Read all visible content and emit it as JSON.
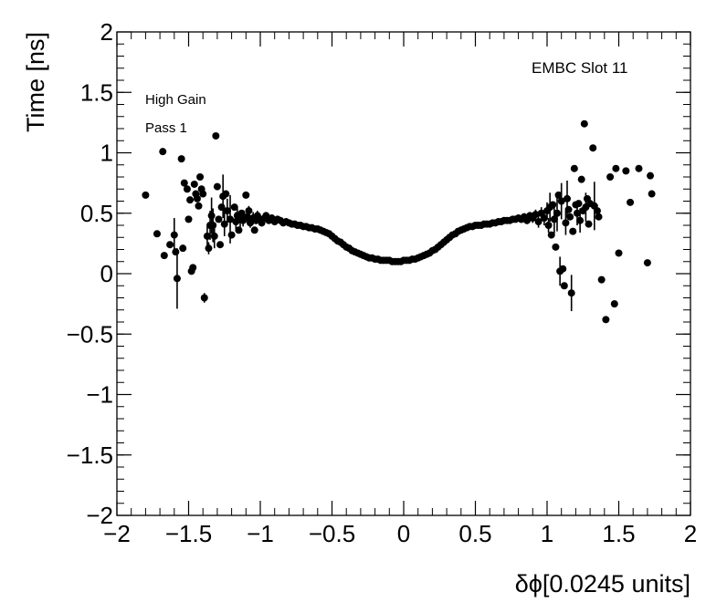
{
  "chart_data": {
    "type": "scatter",
    "title": "",
    "xlabel": "δϕ[0.0245 units]",
    "ylabel": "Time [ns]",
    "xlim": [
      -2,
      2
    ],
    "ylim": [
      -2,
      2
    ],
    "x_ticks": [
      "−2",
      "−1.5",
      "−1",
      "−0.5",
      "0",
      "0.5",
      "1",
      "1.5",
      "2"
    ],
    "y_ticks": [
      "−2",
      "−1.5",
      "−1",
      "−0.5",
      "0",
      "0.5",
      "1",
      "1.5",
      "2"
    ],
    "annotations": {
      "detector": "EMBC Slot 11",
      "gain": "High Gain",
      "pass": "Pass 1"
    },
    "grid": false,
    "legend": "none",
    "marker_color": "#000000",
    "series": [
      {
        "points": [
          [
            -1.8,
            0.65,
            0.0
          ],
          [
            -1.72,
            0.33,
            0.0
          ],
          [
            -1.68,
            1.01,
            0.0
          ],
          [
            -1.67,
            0.15,
            0.0
          ],
          [
            -1.63,
            0.24,
            0.0
          ],
          [
            -1.6,
            0.32,
            0.14
          ],
          [
            -1.59,
            0.18,
            0.0
          ],
          [
            -1.58,
            -0.04,
            0.25
          ],
          [
            -1.55,
            0.95,
            0.0
          ],
          [
            -1.54,
            0.21,
            0.0
          ],
          [
            -1.53,
            0.75,
            0.0
          ],
          [
            -1.51,
            0.7,
            0.0
          ],
          [
            -1.5,
            0.45,
            0.0
          ],
          [
            -1.49,
            0.61,
            0.0
          ],
          [
            -1.48,
            0.02,
            0.0
          ],
          [
            -1.47,
            0.05,
            0.0
          ],
          [
            -1.46,
            0.74,
            0.0
          ],
          [
            -1.45,
            0.66,
            0.0
          ],
          [
            -1.44,
            0.62,
            0.0
          ],
          [
            -1.43,
            0.56,
            0.0
          ],
          [
            -1.42,
            0.8,
            0.0
          ],
          [
            -1.41,
            0.7,
            0.0
          ],
          [
            -1.4,
            0.66,
            0.0
          ],
          [
            -1.39,
            -0.2,
            0.04
          ],
          [
            -1.37,
            0.31,
            0.08
          ],
          [
            -1.36,
            0.21,
            0.05
          ],
          [
            -1.35,
            0.4,
            0.12
          ],
          [
            -1.34,
            0.48,
            0.15
          ],
          [
            -1.33,
            0.4,
            0.14
          ],
          [
            -1.32,
            0.31,
            0.1
          ],
          [
            -1.31,
            1.14,
            0.0
          ],
          [
            -1.3,
            0.72,
            0.0
          ],
          [
            -1.29,
            0.45,
            0.0
          ],
          [
            -1.28,
            0.24,
            0.0
          ],
          [
            -1.27,
            0.55,
            0.0
          ],
          [
            -1.26,
            0.64,
            0.18
          ],
          [
            -1.25,
            0.41,
            0.1
          ],
          [
            -1.24,
            0.66,
            0.0
          ],
          [
            -1.23,
            0.52,
            0.1
          ],
          [
            -1.21,
            0.45,
            0.2
          ],
          [
            -1.2,
            0.32,
            0.0
          ],
          [
            -1.18,
            0.55,
            0.0
          ],
          [
            -1.17,
            0.43,
            0.08
          ],
          [
            -1.16,
            0.48,
            0.06
          ],
          [
            -1.15,
            0.36,
            0.0
          ],
          [
            -1.14,
            0.45,
            0.07
          ],
          [
            -1.13,
            0.5,
            0.0
          ],
          [
            -1.12,
            0.44,
            0.05
          ],
          [
            -1.1,
            0.65,
            0.0
          ],
          [
            -1.09,
            0.47,
            0.05
          ],
          [
            -1.08,
            0.52,
            0.04
          ],
          [
            -1.07,
            0.42,
            0.04
          ],
          [
            -1.05,
            0.46,
            0.05
          ],
          [
            -1.04,
            0.36,
            0.0
          ],
          [
            -1.03,
            0.44,
            0.03
          ],
          [
            -1.02,
            0.48,
            0.04
          ],
          [
            -1.0,
            0.45,
            0.03
          ],
          [
            -0.99,
            0.42,
            0.03
          ],
          [
            -0.97,
            0.46,
            0.03
          ],
          [
            -0.96,
            0.48,
            0.03
          ],
          [
            -0.94,
            0.44,
            0.02
          ],
          [
            -0.92,
            0.46,
            0.02
          ],
          [
            -0.9,
            0.43,
            0.02
          ],
          [
            -0.88,
            0.45,
            0.02
          ],
          [
            -0.86,
            0.44,
            0.02
          ],
          [
            -0.84,
            0.42,
            0.02
          ],
          [
            -0.82,
            0.43,
            0.0
          ],
          [
            -0.8,
            0.42,
            0.0
          ],
          [
            -0.78,
            0.41,
            0.0
          ],
          [
            -0.76,
            0.41,
            0.0
          ],
          [
            -0.74,
            0.4,
            0.0
          ],
          [
            -0.72,
            0.4,
            0.0
          ],
          [
            -0.7,
            0.39,
            0.0
          ],
          [
            -0.68,
            0.39,
            0.0
          ],
          [
            -0.66,
            0.38,
            0.0
          ],
          [
            -0.64,
            0.38,
            0.0
          ],
          [
            -0.62,
            0.37,
            0.0
          ],
          [
            -0.6,
            0.37,
            0.0
          ],
          [
            -0.58,
            0.36,
            0.0
          ],
          [
            -0.56,
            0.35,
            0.0
          ],
          [
            -0.54,
            0.34,
            0.0
          ],
          [
            -0.52,
            0.33,
            0.0
          ],
          [
            -0.5,
            0.31,
            0.0
          ],
          [
            -0.48,
            0.29,
            0.0
          ],
          [
            -0.46,
            0.27,
            0.0
          ],
          [
            -0.44,
            0.26,
            0.0
          ],
          [
            -0.42,
            0.24,
            0.0
          ],
          [
            -0.4,
            0.22,
            0.0
          ],
          [
            -0.38,
            0.21,
            0.0
          ],
          [
            -0.36,
            0.19,
            0.0
          ],
          [
            -0.34,
            0.18,
            0.0
          ],
          [
            -0.32,
            0.17,
            0.0
          ],
          [
            -0.3,
            0.16,
            0.0
          ],
          [
            -0.28,
            0.15,
            0.0
          ],
          [
            -0.26,
            0.14,
            0.0
          ],
          [
            -0.24,
            0.13,
            0.0
          ],
          [
            -0.22,
            0.13,
            0.0
          ],
          [
            -0.2,
            0.12,
            0.0
          ],
          [
            -0.18,
            0.12,
            0.0
          ],
          [
            -0.16,
            0.11,
            0.0
          ],
          [
            -0.14,
            0.11,
            0.0
          ],
          [
            -0.12,
            0.11,
            0.0
          ],
          [
            -0.1,
            0.11,
            0.0
          ],
          [
            -0.08,
            0.1,
            0.0
          ],
          [
            -0.06,
            0.1,
            0.0
          ],
          [
            -0.04,
            0.1,
            0.0
          ],
          [
            -0.02,
            0.1,
            0.0
          ],
          [
            0.0,
            0.11,
            0.0
          ],
          [
            0.02,
            0.11,
            0.0
          ],
          [
            0.04,
            0.11,
            0.0
          ],
          [
            0.06,
            0.12,
            0.0
          ],
          [
            0.08,
            0.12,
            0.0
          ],
          [
            0.1,
            0.13,
            0.0
          ],
          [
            0.12,
            0.14,
            0.0
          ],
          [
            0.14,
            0.15,
            0.0
          ],
          [
            0.16,
            0.16,
            0.0
          ],
          [
            0.18,
            0.17,
            0.0
          ],
          [
            0.2,
            0.19,
            0.0
          ],
          [
            0.22,
            0.2,
            0.0
          ],
          [
            0.24,
            0.22,
            0.0
          ],
          [
            0.26,
            0.24,
            0.0
          ],
          [
            0.28,
            0.26,
            0.0
          ],
          [
            0.3,
            0.28,
            0.0
          ],
          [
            0.32,
            0.3,
            0.0
          ],
          [
            0.34,
            0.32,
            0.0
          ],
          [
            0.36,
            0.33,
            0.0
          ],
          [
            0.38,
            0.35,
            0.0
          ],
          [
            0.4,
            0.36,
            0.0
          ],
          [
            0.42,
            0.37,
            0.0
          ],
          [
            0.44,
            0.38,
            0.0
          ],
          [
            0.46,
            0.39,
            0.0
          ],
          [
            0.48,
            0.39,
            0.0
          ],
          [
            0.5,
            0.4,
            0.0
          ],
          [
            0.52,
            0.4,
            0.0
          ],
          [
            0.54,
            0.4,
            0.0
          ],
          [
            0.56,
            0.41,
            0.0
          ],
          [
            0.58,
            0.41,
            0.0
          ],
          [
            0.6,
            0.41,
            0.0
          ],
          [
            0.62,
            0.42,
            0.0
          ],
          [
            0.64,
            0.42,
            0.0
          ],
          [
            0.66,
            0.43,
            0.02
          ],
          [
            0.68,
            0.43,
            0.0
          ],
          [
            0.7,
            0.44,
            0.0
          ],
          [
            0.72,
            0.44,
            0.02
          ],
          [
            0.74,
            0.44,
            0.0
          ],
          [
            0.76,
            0.45,
            0.02
          ],
          [
            0.78,
            0.45,
            0.0
          ],
          [
            0.8,
            0.46,
            0.02
          ],
          [
            0.82,
            0.45,
            0.03
          ],
          [
            0.84,
            0.47,
            0.03
          ],
          [
            0.86,
            0.44,
            0.03
          ],
          [
            0.88,
            0.48,
            0.03
          ],
          [
            0.9,
            0.46,
            0.04
          ],
          [
            0.92,
            0.49,
            0.04
          ],
          [
            0.94,
            0.43,
            0.05
          ],
          [
            0.96,
            0.5,
            0.05
          ],
          [
            0.98,
            0.46,
            0.06
          ],
          [
            1.0,
            0.52,
            0.07
          ],
          [
            1.01,
            0.4,
            0.06
          ],
          [
            1.02,
            0.55,
            0.12
          ],
          [
            1.03,
            0.32,
            0.0
          ],
          [
            1.04,
            0.57,
            0.0
          ],
          [
            1.05,
            0.45,
            0.12
          ],
          [
            1.06,
            0.22,
            0.0
          ],
          [
            1.07,
            0.5,
            0.15
          ],
          [
            1.08,
            0.65,
            0.0
          ],
          [
            1.09,
            0.02,
            0.12
          ],
          [
            1.1,
            0.6,
            0.15
          ],
          [
            1.11,
            0.04,
            0.0
          ],
          [
            1.12,
            -0.1,
            0.0
          ],
          [
            1.13,
            0.42,
            0.1
          ],
          [
            1.14,
            0.62,
            0.15
          ],
          [
            1.15,
            0.53,
            0.0
          ],
          [
            1.16,
            0.47,
            0.0
          ],
          [
            1.17,
            -0.16,
            0.15
          ],
          [
            1.18,
            0.35,
            0.0
          ],
          [
            1.19,
            0.87,
            0.0
          ],
          [
            1.2,
            0.57,
            0.0
          ],
          [
            1.21,
            0.5,
            0.1
          ],
          [
            1.22,
            0.58,
            0.0
          ],
          [
            1.23,
            0.44,
            0.1
          ],
          [
            1.24,
            0.78,
            0.0
          ],
          [
            1.25,
            0.52,
            0.0
          ],
          [
            1.26,
            1.24,
            0.0
          ],
          [
            1.27,
            0.55,
            0.12
          ],
          [
            1.28,
            0.62,
            0.0
          ],
          [
            1.29,
            0.41,
            0.0
          ],
          [
            1.3,
            0.58,
            0.0
          ],
          [
            1.32,
            1.04,
            0.0
          ],
          [
            1.33,
            0.56,
            0.2
          ],
          [
            1.35,
            0.52,
            0.0
          ],
          [
            1.36,
            0.47,
            0.0
          ],
          [
            1.38,
            -0.05,
            0.0
          ],
          [
            1.41,
            -0.38,
            0.0
          ],
          [
            1.44,
            0.8,
            0.0
          ],
          [
            1.47,
            -0.25,
            0.0
          ],
          [
            1.48,
            0.87,
            0.0
          ],
          [
            1.5,
            0.17,
            0.0
          ],
          [
            1.55,
            0.85,
            0.0
          ],
          [
            1.58,
            0.59,
            0.0
          ],
          [
            1.64,
            0.87,
            0.0
          ],
          [
            1.7,
            0.09,
            0.0
          ],
          [
            1.72,
            0.81,
            0.0
          ],
          [
            1.73,
            0.66,
            0.0
          ]
        ]
      }
    ]
  }
}
